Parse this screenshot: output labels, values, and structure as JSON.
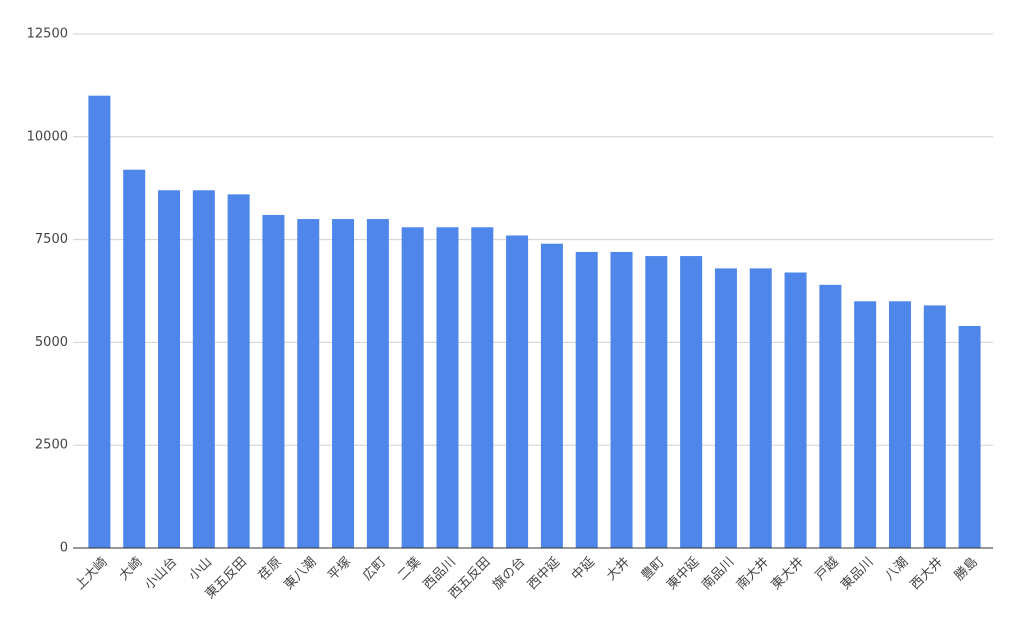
{
  "chart_data": {
    "type": "bar",
    "categories": [
      "上大崎",
      "大崎",
      "小山台",
      "小山",
      "東五反田",
      "荏原",
      "東八潮",
      "平塚",
      "広町",
      "二葉",
      "西品川",
      "西五反田",
      "旗の台",
      "西中延",
      "中延",
      "大井",
      "豊町",
      "東中延",
      "南品川",
      "南大井",
      "東大井",
      "戸越",
      "東品川",
      "八潮",
      "西大井",
      "勝島"
    ],
    "values": [
      11000,
      9200,
      8700,
      8700,
      8600,
      8100,
      8000,
      8000,
      8000,
      7800,
      7800,
      7800,
      7600,
      7400,
      7200,
      7200,
      7100,
      7100,
      6800,
      6800,
      6700,
      6400,
      6000,
      6000,
      5900,
      5400
    ],
    "color": "#4e86ea",
    "ylim": [
      0,
      12500
    ],
    "yticks": [
      0,
      2500,
      5000,
      7500,
      10000,
      12500
    ],
    "grid": true
  }
}
